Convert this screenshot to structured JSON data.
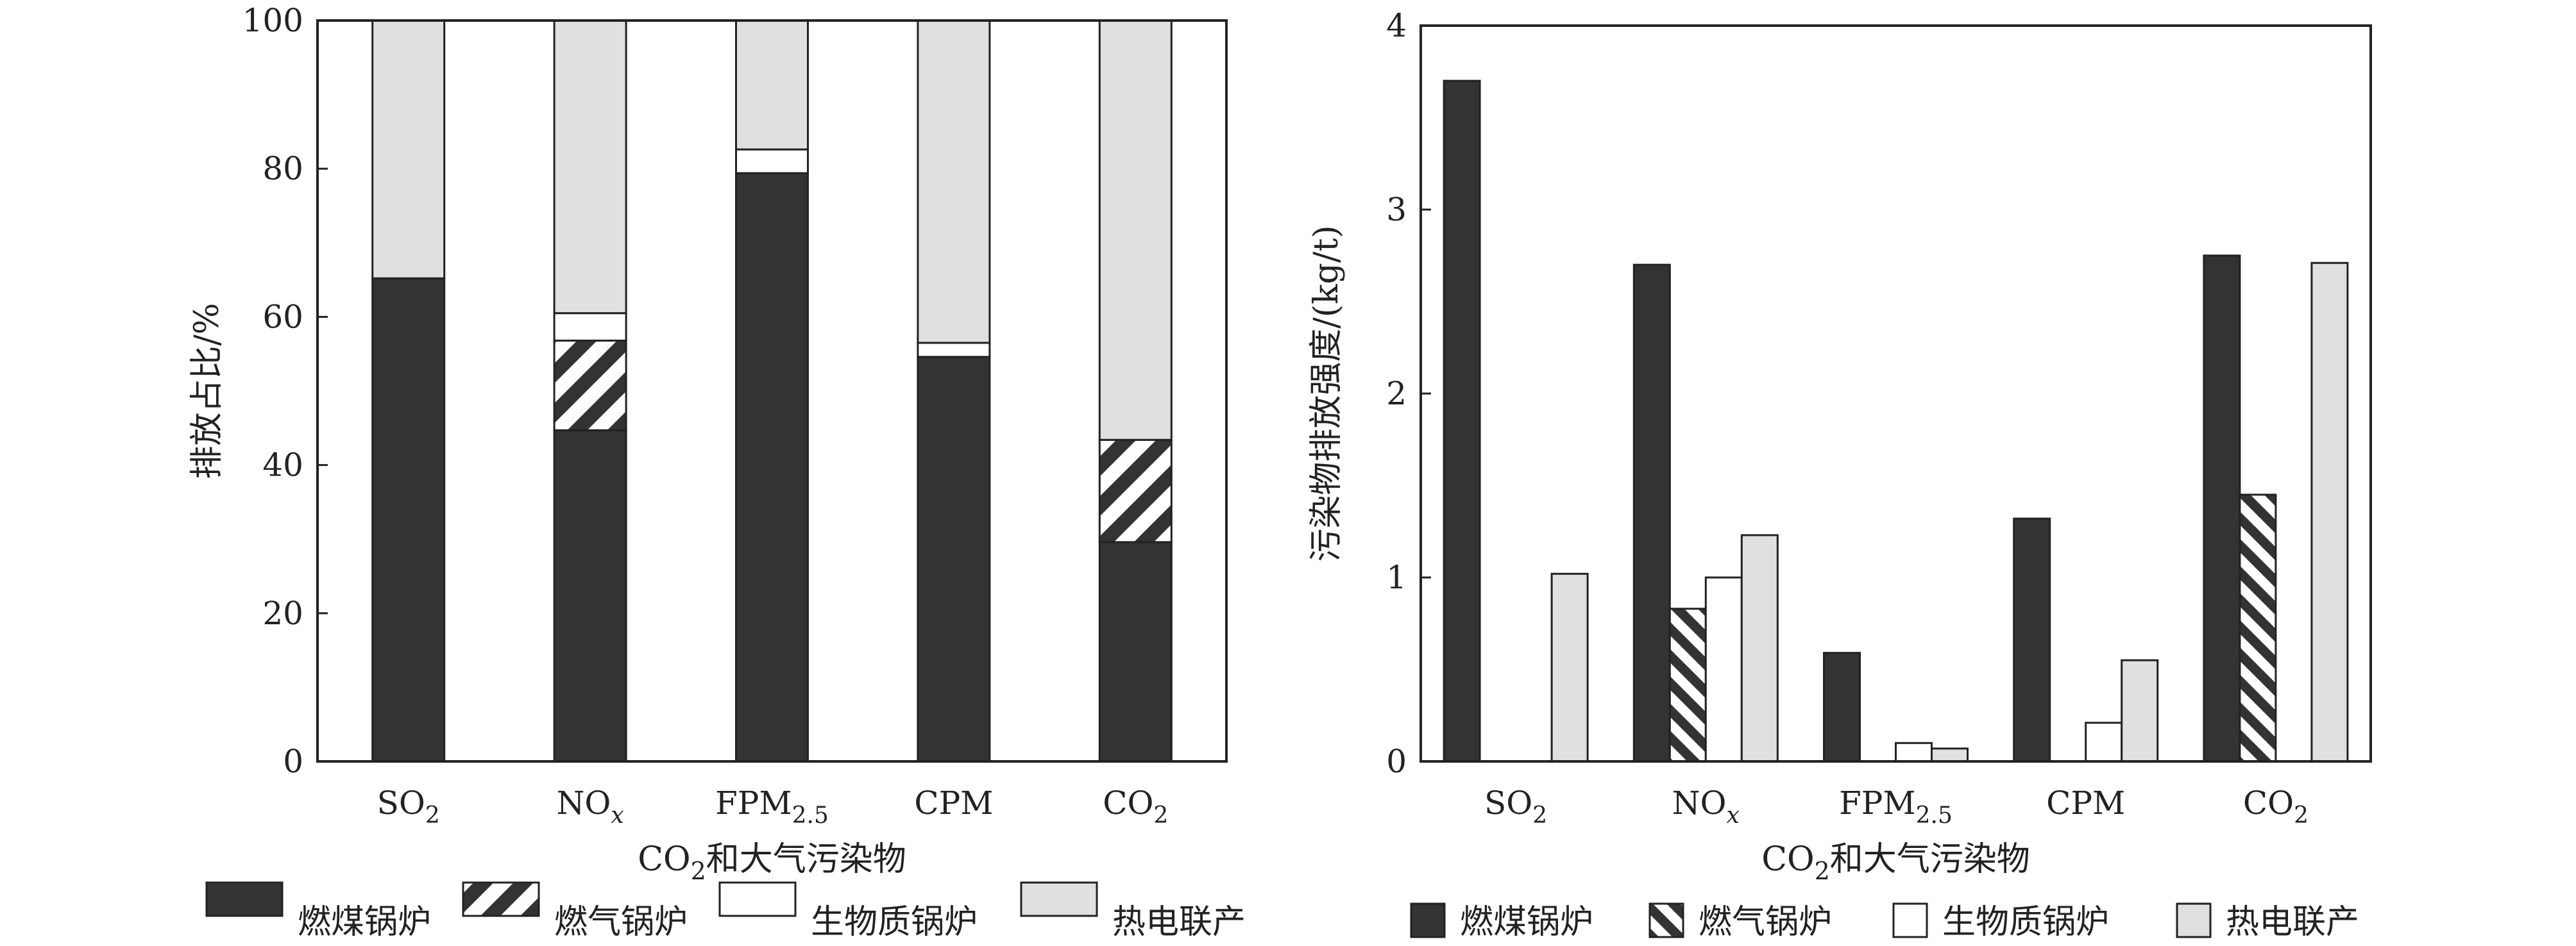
{
  "colors": {
    "coal": "#333333",
    "gas_hatch_fg": "#333333",
    "gas_hatch_bg": "#ffffff",
    "biomass": "#ffffff",
    "chp": "#e0e0e0",
    "axis": "#222222"
  },
  "legend": [
    {
      "key": "coal",
      "label": "燃煤锅炉"
    },
    {
      "key": "gas",
      "label": "燃气锅炉"
    },
    {
      "key": "biomass",
      "label": "生物质锅炉"
    },
    {
      "key": "chp",
      "label": "热电联产"
    }
  ],
  "chart_data": [
    {
      "type": "bar",
      "stacked": true,
      "ylabel": "排放占比/%",
      "xlabel": "CO2和大气污染物",
      "xlabel_parts": {
        "base": "CO",
        "sub": "2",
        "rest": "和大气污染物"
      },
      "ylim": [
        0,
        100
      ],
      "yticks": [
        0,
        20,
        40,
        60,
        80,
        100
      ],
      "categories": [
        "SO2",
        "NOx",
        "FPM2.5",
        "CPM",
        "CO2"
      ],
      "category_labels": [
        {
          "base": "SO",
          "sub": "2",
          "sub_style": "normal"
        },
        {
          "base": "NO",
          "sub": "x",
          "sub_style": "italic"
        },
        {
          "base": "FPM",
          "sub": "2.5",
          "sub_style": "normal"
        },
        {
          "base": "CPM",
          "sub": "",
          "sub_style": "normal"
        },
        {
          "base": "CO",
          "sub": "2",
          "sub_style": "normal"
        }
      ],
      "series": [
        {
          "name": "燃煤锅炉",
          "key": "coal",
          "values": [
            65.2,
            44.7,
            79.4,
            54.6,
            29.6
          ]
        },
        {
          "name": "燃气锅炉",
          "key": "gas",
          "values": [
            0,
            12.1,
            0,
            0,
            13.8
          ]
        },
        {
          "name": "生物质锅炉",
          "key": "biomass",
          "values": [
            0,
            3.7,
            3.2,
            1.9,
            0
          ]
        },
        {
          "name": "热电联产",
          "key": "chp",
          "values": [
            34.8,
            39.5,
            17.4,
            43.5,
            56.6
          ]
        }
      ]
    },
    {
      "type": "bar",
      "stacked": false,
      "ylabel": "污染物排放强度/(kg/t)",
      "xlabel": "CO2和大气污染物",
      "xlabel_parts": {
        "base": "CO",
        "sub": "2",
        "rest": "和大气污染物"
      },
      "ylim": [
        0,
        4
      ],
      "yticks": [
        0,
        1,
        2,
        3,
        4
      ],
      "categories": [
        "SO2",
        "NOx",
        "FPM2.5",
        "CPM",
        "CO2"
      ],
      "category_labels": [
        {
          "base": "SO",
          "sub": "2",
          "sub_style": "normal"
        },
        {
          "base": "NO",
          "sub": "x",
          "sub_style": "italic"
        },
        {
          "base": "FPM",
          "sub": "2.5",
          "sub_style": "normal"
        },
        {
          "base": "CPM",
          "sub": "",
          "sub_style": "normal"
        },
        {
          "base": "CO",
          "sub": "2",
          "sub_style": "normal"
        }
      ],
      "series": [
        {
          "name": "燃煤锅炉",
          "key": "coal",
          "values": [
            3.7,
            2.7,
            0.59,
            1.32,
            2.75
          ]
        },
        {
          "name": "燃气锅炉",
          "key": "gas",
          "values": [
            0,
            0.83,
            0,
            0,
            1.45
          ]
        },
        {
          "name": "生物质锅炉",
          "key": "biomass",
          "values": [
            0,
            1.0,
            0.1,
            0.21,
            0
          ]
        },
        {
          "name": "热电联产",
          "key": "chp",
          "values": [
            1.02,
            1.23,
            0.07,
            0.55,
            2.71
          ]
        }
      ]
    }
  ]
}
